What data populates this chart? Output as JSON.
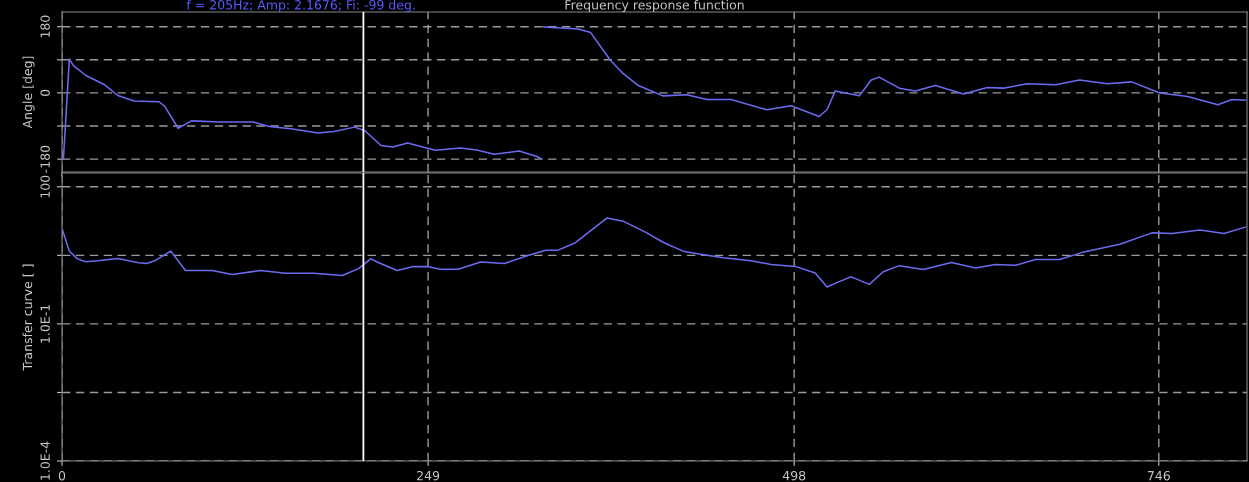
{
  "chart_data": [
    {
      "type": "line",
      "title": "Frequency response function",
      "ylabel": "Angle [deg]",
      "annotations": [
        "f = 205Hz; Amp: 2.1676; Fi: -99 deg."
      ],
      "xlim": [
        0,
        806
      ],
      "xticks": [
        0,
        249,
        498,
        746
      ],
      "ylim": [
        -215,
        220
      ],
      "yticks": [
        {
          "value": -180,
          "label": "-180"
        },
        {
          "value": -90,
          "label": null
        },
        {
          "value": 0,
          "label": "0"
        },
        {
          "value": 90,
          "label": null
        },
        {
          "value": 180,
          "label": "180"
        }
      ],
      "grid": true,
      "tick_labels": "y",
      "legend": false,
      "marker": "none",
      "line_style": "solid",
      "ref_lines": [
        {
          "axis": "x",
          "value": 205,
          "color": "#ffffff",
          "line_style": "solid"
        }
      ],
      "series": [
        {
          "color": "#6b6bf0",
          "x": [
            1,
            5,
            7.8,
            16,
            28.6,
            38,
            49,
            66,
            70,
            79,
            88,
            107.5,
            130,
            141,
            157,
            174,
            185,
            199,
            206,
            217,
            225,
            235,
            246,
            254,
            271,
            282,
            294,
            311,
            323,
            326,
            326.5,
            327.7,
            351,
            359.6,
            373,
            381.6,
            392,
            408.7,
            425,
            438.7,
            455,
            479.5,
            495.9,
            515,
            520.4,
            525.9,
            542.3,
            550.4,
            555.8,
            569.5,
            580.4,
            594,
            613.1,
            629.4,
            640.3,
            656.7,
            675.8,
            692.1,
            711.2,
            727.5,
            746.7,
            765.7,
            786.2,
            795.7,
            805
          ],
          "values": [
            -178,
            92,
            74,
            48,
            23,
            -7,
            -22,
            -24,
            -37,
            -96,
            -76,
            -79,
            -79,
            -91,
            -98,
            -109,
            -105,
            -93,
            -103,
            -143,
            -147,
            -136,
            -148,
            -156,
            -150,
            -155,
            -167,
            -158,
            -173,
            -179,
            null,
            179,
            174,
            164,
            89,
            53,
            20,
            -8,
            -5,
            -18,
            -18,
            -46,
            -35,
            -64,
            -45,
            5,
            -8,
            35,
            43,
            13,
            5,
            20,
            -3,
            15,
            13,
            25,
            22,
            35,
            25,
            30,
            0,
            -10,
            -32,
            -18,
            -20
          ]
        }
      ]
    },
    {
      "type": "line",
      "ylabel": "Transfer curve [ ]",
      "log": true,
      "xlim": [
        0,
        806
      ],
      "xticks": [
        0,
        249,
        498,
        746
      ],
      "ylim": [
        0.0001,
        200
      ],
      "yticks": [
        {
          "value": 0.0001,
          "label": "1.0E-4"
        },
        {
          "value": 0.00316,
          "label": null
        },
        {
          "value": 0.1,
          "label": "1.0E-1"
        },
        {
          "value": 3.16,
          "label": null
        },
        {
          "value": 100,
          "label": "100"
        }
      ],
      "grid": true,
      "legend": false,
      "marker": "none",
      "line_style": "solid",
      "ref_lines": [
        {
          "axis": "x",
          "value": 205,
          "color": "#ffffff",
          "line_style": "solid"
        }
      ],
      "series": [
        {
          "color": "#6b6bf0",
          "x": [
            0.3,
            5,
            10.5,
            16,
            24.4,
            38,
            52,
            57.6,
            63,
            74,
            84,
            102,
            116,
            135,
            152,
            171,
            190.6,
            201.7,
            210,
            215.5,
            228,
            239,
            248.8,
            257,
            269.5,
            284.8,
            301,
            318,
            329,
            337.4,
            348.5,
            370.6,
            381.7,
            397.8,
            408.8,
            422.4,
            433.3,
            449.6,
            468.6,
            482.3,
            498.6,
            512.3,
            520.4,
            528.6,
            536.8,
            549.1,
            558.6,
            569.5,
            585.9,
            604.9,
            621.3,
            634.9,
            648.6,
            662.2,
            678.6,
            695,
            719.5,
            741.3,
            755,
            774,
            790.4,
            805
          ],
          "values": [
            11.5,
            3.9,
            2.65,
            2.3,
            2.4,
            2.7,
            2.18,
            2.1,
            2.4,
            3.9,
            1.47,
            1.47,
            1.21,
            1.47,
            1.28,
            1.28,
            1.14,
            1.62,
            2.65,
            2.18,
            1.47,
            1.79,
            1.79,
            1.56,
            1.56,
            2.26,
            2.1,
            3.2,
            4.1,
            4.1,
            5.8,
            20.7,
            17.7,
            9.8,
            6.1,
            3.9,
            3.4,
            2.8,
            2.4,
            1.99,
            1.81,
            1.3,
            0.64,
            0.84,
            1.07,
            0.73,
            1.38,
            1.88,
            1.55,
            2.19,
            1.67,
            1.99,
            1.91,
            2.55,
            2.55,
            3.76,
            5.5,
            9.8,
            9.5,
            11.3,
            9.5,
            13.1
          ]
        }
      ]
    }
  ]
}
